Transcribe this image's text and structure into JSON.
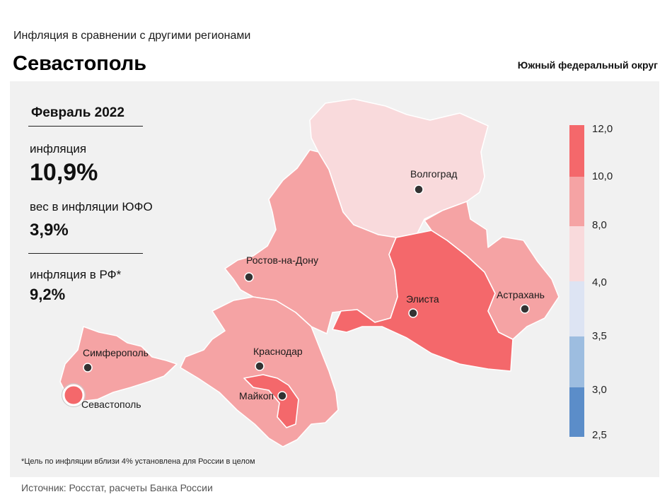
{
  "header": {
    "supertitle": "Инфляция  в сравнении  с другими  регионами",
    "title": "Севастополь",
    "district": "Южный федеральный округ"
  },
  "stats": {
    "period": "Февраль 2022",
    "inflation_label": "инфляция",
    "inflation_value": "10,9%",
    "weight_label": "вес в инфляции  ЮФО",
    "weight_value": "3,9%",
    "rf_label": "инфляция  в РФ*",
    "rf_value": "9,2%"
  },
  "footnote": "*Цель по инфляции вблизи 4% установлена для России в целом",
  "source": "Источник: Росстат, расчеты Банка России",
  "map": {
    "cities": {
      "volgograd": "Волгоград",
      "rostov": "Ростов-на-Дону",
      "elista": "Элиста",
      "astrakhan": "Астрахань",
      "simferopol": "Симферополь",
      "krasnodar": "Краснодар",
      "maykop": "Майкоп",
      "sevastopol": "Севастополь"
    },
    "region_classes": {
      "volgograd_oblast": "4,0–8,0",
      "rostov_oblast": "8,0–10,0",
      "krasnodar_krai": "8,0–10,0",
      "crimea": "8,0–10,0",
      "astrakhan_oblast": "8,0–10,0",
      "kalmykia": "10,0–12,0",
      "adygea": "10,0–12,0",
      "sevastopol": "10,0–12,0"
    }
  },
  "legend": {
    "ticks": [
      "12,0",
      "10,0",
      "8,0",
      "4,0",
      "3,5",
      "3,0",
      "2,5"
    ],
    "colors": [
      "#f4686b",
      "#f5a3a4",
      "#f9dadc",
      "#dde4f3",
      "#9dbde0",
      "#5b8dc9"
    ]
  }
}
